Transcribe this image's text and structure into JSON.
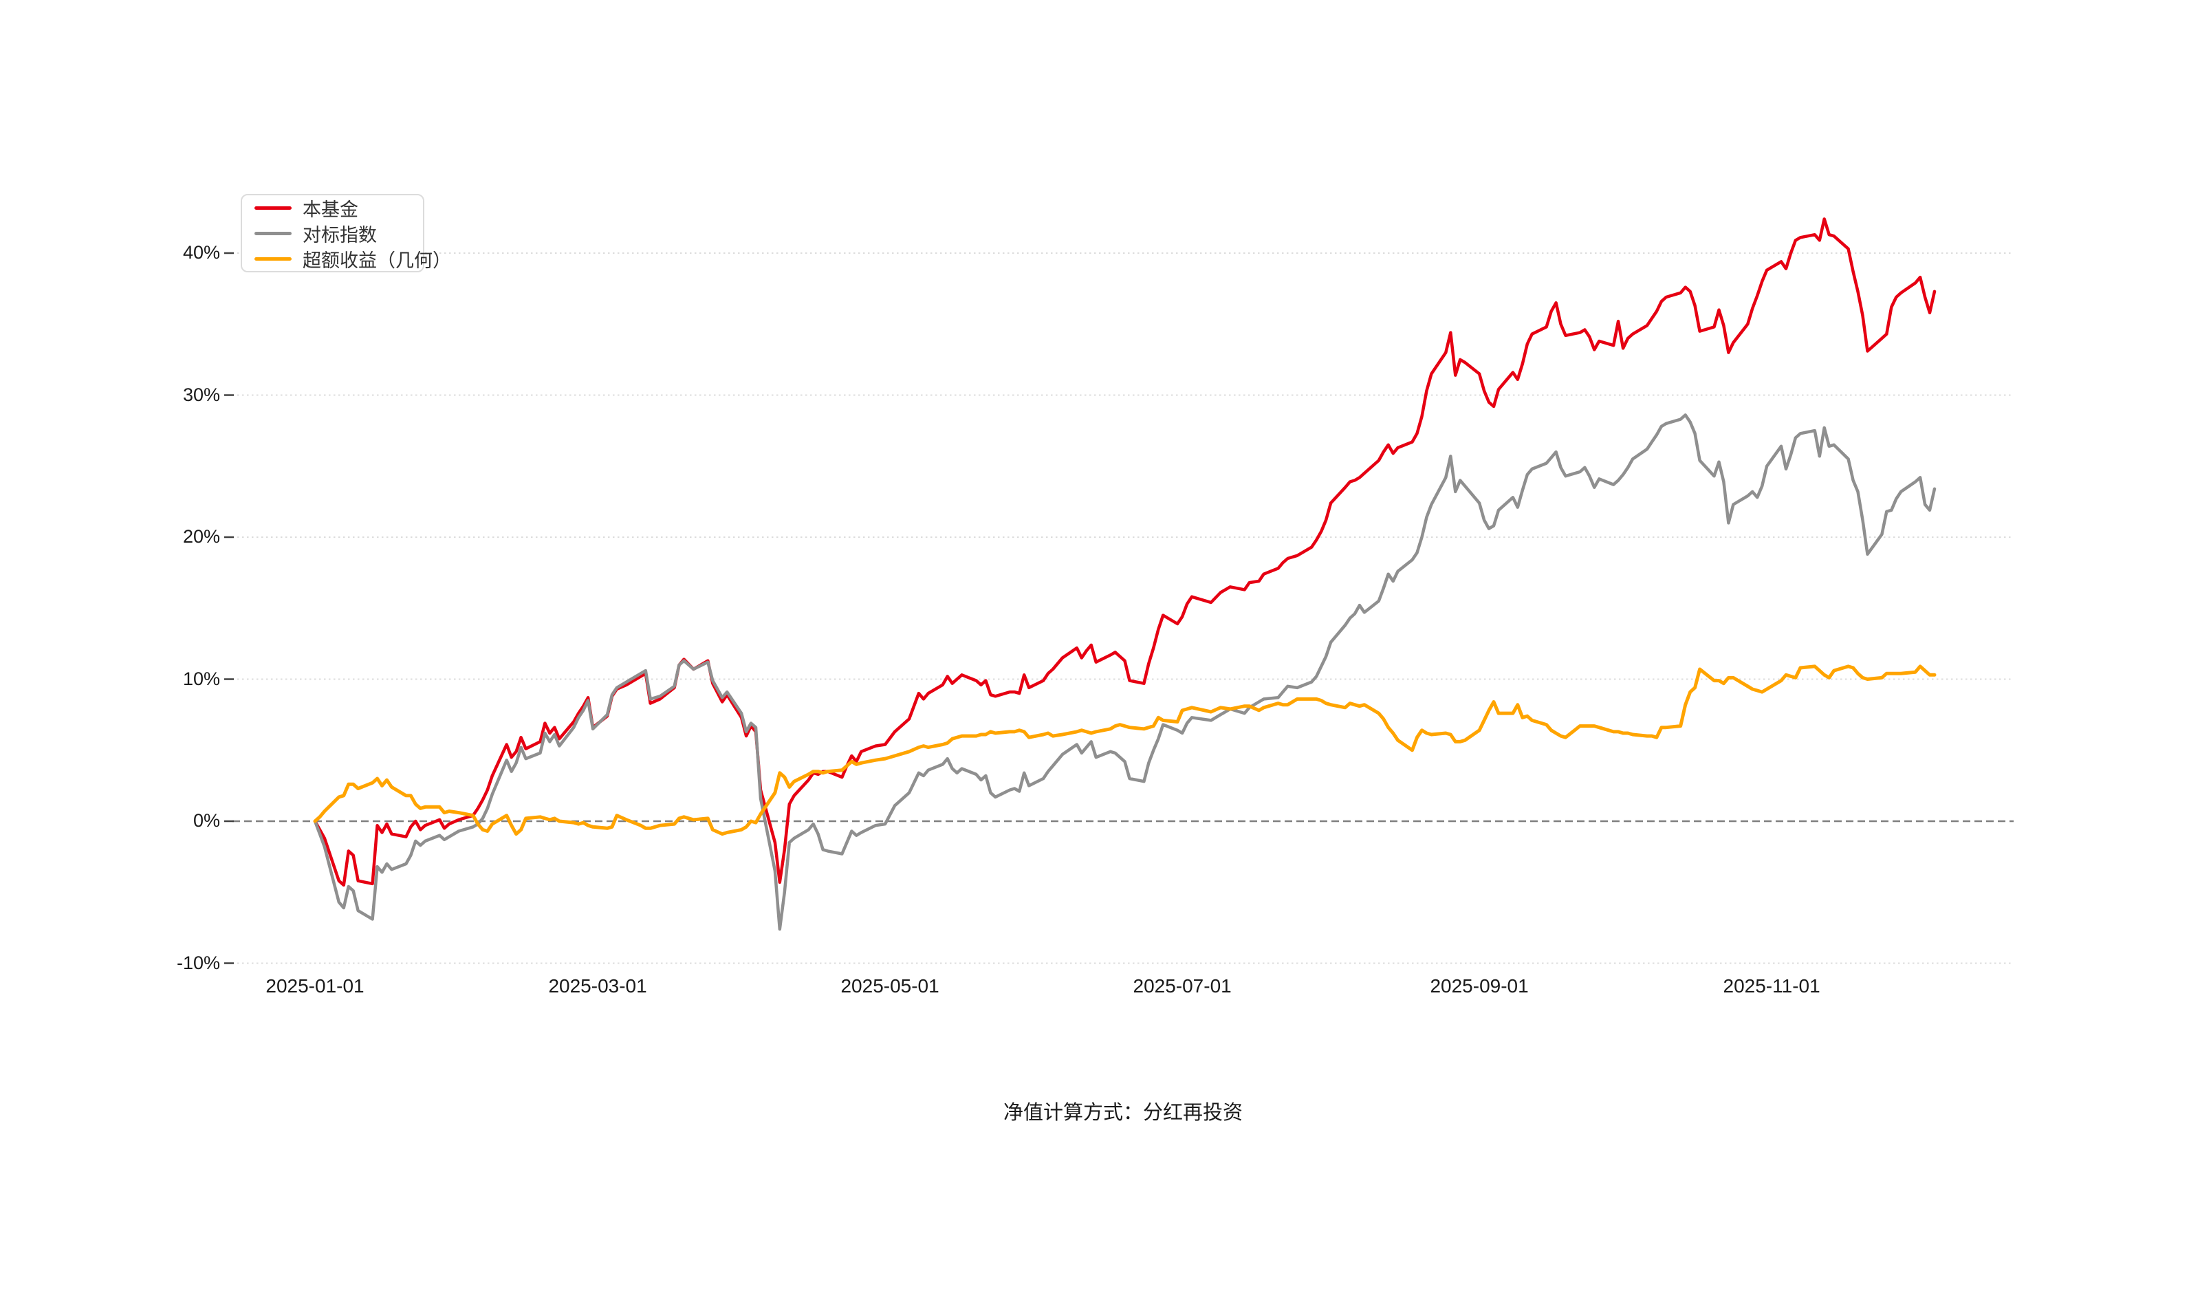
{
  "page": {
    "background": "#ffffff"
  },
  "caption": {
    "text": "净值计算方式：分红再投资"
  },
  "legend": {
    "items": [
      {
        "label": "本基金",
        "color": "#e60012"
      },
      {
        "label": "对标指数",
        "color": "#8f8f8f"
      },
      {
        "label": "超额收益（几何）",
        "color": "#ffa400"
      }
    ]
  },
  "chart_data": {
    "type": "line",
    "title": "",
    "xlabel": "",
    "ylabel": "",
    "start_date": "2025-01-01",
    "x_axis": {
      "tick_labels": [
        "2025-01-01",
        "2025-03-01",
        "2025-05-01",
        "2025-07-01",
        "2025-09-01",
        "2025-11-01"
      ],
      "tick_days": [
        0,
        59,
        120,
        181,
        243,
        304
      ]
    },
    "y_axis": {
      "tick_labels": [
        "40%",
        "30%",
        "20%",
        "10%",
        "0%",
        "-10%"
      ],
      "tick_values": [
        40,
        30,
        20,
        10,
        0,
        -10
      ],
      "ylim": [
        -10,
        43.5
      ],
      "zero_line_style": "dashed",
      "grid_style": "dotted"
    },
    "x_days": [
      0,
      1,
      2,
      5,
      6,
      7,
      8,
      9,
      12,
      13,
      14,
      15,
      16,
      19,
      20,
      21,
      22,
      23,
      26,
      27,
      28,
      30,
      33,
      34,
      35,
      36,
      37,
      40,
      41,
      42,
      43,
      44,
      47,
      48,
      49,
      50,
      51,
      54,
      55,
      56,
      57,
      58,
      61,
      62,
      63,
      65,
      68,
      69,
      70,
      72,
      75,
      76,
      77,
      79,
      82,
      83,
      85,
      86,
      89,
      90,
      91,
      92,
      93,
      96,
      97,
      98,
      99,
      100,
      103,
      104,
      105,
      106,
      107,
      110,
      111,
      112,
      113,
      114,
      117,
      119,
      121,
      124,
      126,
      127,
      128,
      131,
      132,
      133,
      134,
      135,
      138,
      139,
      140,
      141,
      142,
      145,
      146,
      147,
      148,
      149,
      152,
      153,
      154,
      156,
      159,
      160,
      161,
      162,
      163,
      166,
      167,
      168,
      169,
      170,
      173,
      174,
      175,
      176,
      177,
      180,
      181,
      182,
      183,
      187,
      189,
      191,
      194,
      195,
      197,
      198,
      201,
      202,
      203,
      205,
      208,
      209,
      210,
      211,
      212,
      215,
      216,
      217,
      218,
      219,
      222,
      223,
      224,
      225,
      226,
      229,
      230,
      231,
      232,
      233,
      236,
      237,
      238,
      239,
      240,
      243,
      244,
      245,
      246,
      247,
      250,
      251,
      252,
      253,
      254,
      257,
      258,
      259,
      260,
      261,
      264,
      265,
      266,
      267,
      268,
      271,
      272,
      273,
      274,
      275,
      278,
      279,
      280,
      281,
      282,
      285,
      286,
      287,
      288,
      289,
      292,
      293,
      294,
      295,
      296,
      299,
      300,
      301,
      302,
      303,
      306,
      307,
      308,
      309,
      310,
      313,
      314,
      315,
      316,
      317,
      320,
      321,
      322,
      323,
      324,
      327,
      328,
      329,
      330,
      331,
      334,
      335,
      336,
      337,
      338
    ],
    "series": [
      {
        "name": "本基金",
        "color": "#e60012",
        "width": 4.5,
        "values": [
          0,
          -0.6,
          -1.2,
          -4.2,
          -4.5,
          -2.1,
          -2.4,
          -4.2,
          -4.4,
          -0.3,
          -0.8,
          -0.2,
          -0.9,
          -1.1,
          -0.4,
          0,
          -0.6,
          -0.3,
          0.1,
          -0.5,
          -0.2,
          0.1,
          0.4,
          0.9,
          1.5,
          2.2,
          3.2,
          5.4,
          4.5,
          4.9,
          5.9,
          5.1,
          5.6,
          6.9,
          6.2,
          6.6,
          5.8,
          7,
          7.6,
          8.1,
          8.7,
          6.6,
          7.4,
          8.8,
          9.3,
          9.6,
          10.2,
          10.4,
          8.3,
          8.6,
          9.4,
          11,
          11.4,
          10.7,
          11.3,
          9.7,
          8.4,
          8.9,
          7.3,
          6,
          6.7,
          6.3,
          2.2,
          -1.5,
          -4.3,
          -2,
          1.2,
          1.8,
          2.9,
          3.4,
          3.3,
          3.5,
          3.5,
          3.1,
          3.9,
          4.6,
          4.2,
          4.9,
          5.3,
          5.4,
          6.3,
          7.2,
          9,
          8.6,
          9,
          9.6,
          10.2,
          9.7,
          10,
          10.3,
          9.9,
          9.6,
          9.9,
          8.9,
          8.8,
          9.1,
          9.1,
          9,
          10.3,
          9.4,
          9.9,
          10.4,
          10.7,
          11.5,
          12.2,
          11.5,
          12,
          12.4,
          11.2,
          11.7,
          11.9,
          11.6,
          11.3,
          9.9,
          9.7,
          11.1,
          12.2,
          13.5,
          14.5,
          13.9,
          14.4,
          15.3,
          15.8,
          15.4,
          16.1,
          16.5,
          16.3,
          16.8,
          16.9,
          17.4,
          17.8,
          18.2,
          18.5,
          18.7,
          19.3,
          19.8,
          20.4,
          21.2,
          22.4,
          23.5,
          23.9,
          24,
          24.2,
          24.5,
          25.4,
          26,
          26.5,
          25.9,
          26.3,
          26.7,
          27.3,
          28.5,
          30.3,
          31.5,
          33,
          34.4,
          31.4,
          32.5,
          32.3,
          31.5,
          30.3,
          29.5,
          29.2,
          30.4,
          31.6,
          31.1,
          32.2,
          33.6,
          34.3,
          34.8,
          35.9,
          36.5,
          35,
          34.2,
          34.4,
          34.6,
          34.1,
          33.2,
          33.8,
          33.5,
          35.2,
          33.3,
          34,
          34.3,
          34.9,
          35.4,
          35.9,
          36.6,
          36.9,
          37.2,
          37.6,
          37.3,
          36.3,
          34.5,
          34.8,
          36,
          34.9,
          33,
          33.7,
          35,
          36.1,
          37,
          38,
          38.8,
          39.4,
          38.9,
          40,
          40.9,
          41.1,
          41.3,
          40.9,
          42.4,
          41.3,
          41.2,
          40.3,
          38.7,
          37.3,
          35.6,
          33.1,
          34,
          34.3,
          36.2,
          36.9,
          37.2,
          37.9,
          38.3,
          36.9,
          35.8,
          37.3
        ]
      },
      {
        "name": "对标指数",
        "color": "#8f8f8f",
        "width": 4.5,
        "values": [
          0,
          -0.9,
          -1.8,
          -5.7,
          -6.1,
          -4.6,
          -4.9,
          -6.3,
          -6.9,
          -3.2,
          -3.6,
          -3,
          -3.4,
          -3,
          -2.4,
          -1.4,
          -1.7,
          -1.4,
          -1,
          -1.3,
          -1.1,
          -0.7,
          -0.4,
          -0.2,
          0.2,
          0.9,
          1.9,
          4.3,
          3.5,
          4.1,
          5.2,
          4.4,
          4.8,
          6.2,
          5.6,
          6.1,
          5.3,
          6.6,
          7.3,
          7.8,
          8.5,
          6.5,
          7.5,
          8.9,
          9.4,
          9.8,
          10.4,
          10.6,
          8.6,
          8.8,
          9.5,
          11,
          11.3,
          10.7,
          11.2,
          9.9,
          8.7,
          9.1,
          7.6,
          6.3,
          6.9,
          6.6,
          1.6,
          -3.5,
          -7.6,
          -5,
          -1.5,
          -1.2,
          -0.6,
          -0.2,
          -0.9,
          -2,
          -2.1,
          -2.3,
          -1.5,
          -0.7,
          -1,
          -0.8,
          -0.3,
          -0.2,
          1.1,
          2,
          3.4,
          3.2,
          3.6,
          4,
          4.4,
          3.7,
          3.4,
          3.7,
          3.3,
          2.9,
          3.2,
          2,
          1.7,
          2.2,
          2.3,
          2.1,
          3.4,
          2.5,
          3,
          3.5,
          3.9,
          4.7,
          5.4,
          4.8,
          5.2,
          5.6,
          4.5,
          4.9,
          4.8,
          4.5,
          4.2,
          3,
          2.8,
          4.1,
          5,
          5.8,
          6.8,
          6.4,
          6.2,
          6.9,
          7.3,
          7.1,
          7.5,
          7.9,
          7.6,
          8,
          8.4,
          8.6,
          8.7,
          9.1,
          9.5,
          9.4,
          9.8,
          10.2,
          10.9,
          11.6,
          12.6,
          13.8,
          14.3,
          14.6,
          15.2,
          14.7,
          15.5,
          16.4,
          17.4,
          16.9,
          17.6,
          18.4,
          18.9,
          20,
          21.4,
          22.3,
          24.2,
          25.7,
          23.2,
          24,
          23.6,
          22.4,
          21.2,
          20.6,
          20.8,
          21.9,
          22.8,
          22.1,
          23.3,
          24.4,
          24.8,
          25.2,
          25.6,
          26,
          24.9,
          24.3,
          24.6,
          24.9,
          24.3,
          23.5,
          24.1,
          23.7,
          24,
          24.4,
          24.9,
          25.5,
          26.2,
          26.7,
          27.2,
          27.8,
          28,
          28.3,
          28.6,
          28.1,
          27.3,
          25.4,
          24.3,
          25.3,
          23.9,
          21,
          22.3,
          22.9,
          23.2,
          22.8,
          23.6,
          25,
          26.4,
          24.8,
          25.8,
          27,
          27.3,
          27.5,
          25.7,
          27.7,
          26.4,
          26.5,
          25.5,
          24,
          23.2,
          21.2,
          18.8,
          20.2,
          21.8,
          21.9,
          22.7,
          23.2,
          23.9,
          24.2,
          22.3,
          21.9,
          23.4
        ]
      },
      {
        "name": "超额收益（几何）",
        "color": "#ffa400",
        "width": 5,
        "values": [
          0,
          0.3,
          0.7,
          1.7,
          1.8,
          2.6,
          2.6,
          2.3,
          2.7,
          3,
          2.5,
          2.9,
          2.4,
          1.8,
          1.8,
          1.2,
          0.9,
          1,
          1,
          0.6,
          0.7,
          0.6,
          0.4,
          -0.2,
          -0.6,
          -0.7,
          -0.2,
          0.4,
          -0.3,
          -0.9,
          -0.6,
          0.2,
          0.3,
          0.2,
          0.1,
          0.2,
          0,
          -0.1,
          -0.2,
          -0.1,
          -0.3,
          -0.4,
          -0.5,
          -0.4,
          0.4,
          0.1,
          -0.3,
          -0.5,
          -0.5,
          -0.3,
          -0.2,
          0.2,
          0.3,
          0.1,
          0.2,
          -0.6,
          -0.9,
          -0.8,
          -0.6,
          -0.4,
          0,
          -0.1,
          0.5,
          2,
          3.4,
          3.1,
          2.4,
          2.8,
          3.3,
          3.5,
          3.5,
          3.4,
          3.5,
          3.6,
          3.9,
          4.2,
          4,
          4.1,
          4.3,
          4.4,
          4.6,
          4.9,
          5.2,
          5.3,
          5.2,
          5.4,
          5.5,
          5.8,
          5.9,
          6,
          6,
          6.1,
          6.1,
          6.3,
          6.2,
          6.3,
          6.3,
          6.4,
          6.3,
          5.9,
          6.1,
          6.2,
          6,
          6.1,
          6.3,
          6.4,
          6.3,
          6.2,
          6.3,
          6.5,
          6.7,
          6.8,
          6.7,
          6.6,
          6.5,
          6.6,
          6.7,
          7.3,
          7.1,
          7,
          7.8,
          7.9,
          8,
          7.7,
          8,
          7.9,
          8.1,
          8.1,
          7.8,
          8,
          8.3,
          8.2,
          8.2,
          8.6,
          8.6,
          8.6,
          8.5,
          8.3,
          8.2,
          8,
          8.3,
          8.2,
          8.1,
          8.2,
          7.6,
          7.2,
          6.6,
          6.2,
          5.7,
          5,
          5.9,
          6.4,
          6.2,
          6.1,
          6.2,
          6.1,
          5.6,
          5.6,
          5.7,
          6.4,
          7.1,
          7.8,
          8.4,
          7.6,
          7.6,
          8.2,
          7.3,
          7.4,
          7.1,
          6.8,
          6.4,
          6.2,
          6,
          5.9,
          6.7,
          6.7,
          6.7,
          6.7,
          6.6,
          6.3,
          6.3,
          6.2,
          6.2,
          6.1,
          6,
          6,
          5.9,
          6.6,
          6.6,
          6.7,
          8.2,
          9.1,
          9.4,
          10.7,
          9.9,
          9.9,
          9.7,
          10.1,
          10.1,
          9.5,
          9.3,
          9.2,
          9.1,
          9.3,
          9.9,
          10.3,
          10.2,
          10.1,
          10.8,
          10.9,
          10.6,
          10.3,
          10.1,
          10.6,
          10.9,
          10.8,
          10.4,
          10.1,
          10,
          10.1,
          10.4,
          10.4,
          10.4,
          10.4,
          10.5,
          10.9,
          10.6,
          10.3,
          10.3
        ]
      }
    ],
    "legend_position": "top-left",
    "grid_on": true
  }
}
